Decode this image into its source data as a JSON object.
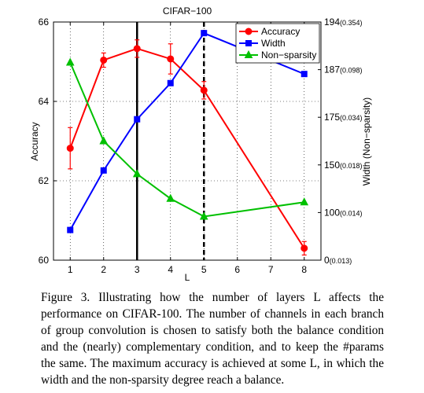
{
  "chart_data": {
    "type": "line",
    "title": "CIFAR−100",
    "xlabel": "L",
    "ylabel_left": "Accuracy",
    "ylabel_right": "Width (Non−sparsity)",
    "x_ticks": [
      "1",
      "2",
      "3",
      "4",
      "5",
      "6",
      "7",
      "8"
    ],
    "xlim": [
      0.5,
      8.5
    ],
    "ylim_left": [
      60,
      66
    ],
    "y_ticks_left": [
      "60",
      "62",
      "64",
      "66"
    ],
    "y_ticks_right": [
      {
        "value": 60,
        "width": "0",
        "nonsparsity": "(0.013)"
      },
      {
        "value": 61.2,
        "width": "100",
        "nonsparsity": "(0.014)"
      },
      {
        "value": 62.4,
        "width": "150",
        "nonsparsity": "(0.018)"
      },
      {
        "value": 63.6,
        "width": "175",
        "nonsparsity": "(0.034)"
      },
      {
        "value": 64.8,
        "width": "187",
        "nonsparsity": "(0.098)"
      },
      {
        "value": 66,
        "width": "194",
        "nonsparsity": "(0.354)"
      }
    ],
    "vertical_lines": [
      {
        "x": 3,
        "style": "solid"
      },
      {
        "x": 5,
        "style": "dashed"
      }
    ],
    "legend_position": "top-right",
    "series": [
      {
        "name": "Accuracy",
        "color": "#ff0000",
        "marker": "circle",
        "x": [
          1,
          2,
          3,
          4,
          5,
          8
        ],
        "y": [
          62.82,
          65.04,
          65.33,
          65.07,
          64.28,
          60.3
        ],
        "err": [
          0.52,
          0.18,
          0.22,
          0.38,
          0.22,
          0.17
        ]
      },
      {
        "name": "Width",
        "color": "#0000ff",
        "marker": "square",
        "x": [
          1,
          2,
          3,
          4,
          5,
          8
        ],
        "y": [
          60.76,
          62.26,
          63.55,
          64.46,
          65.72,
          64.69
        ]
      },
      {
        "name": "Non−sparsity",
        "color": "#00c000",
        "marker": "triangle",
        "x": [
          1,
          2,
          3,
          4,
          5,
          8
        ],
        "y": [
          64.98,
          63.0,
          62.17,
          61.55,
          61.1,
          61.46
        ]
      }
    ]
  },
  "caption": "Figure 3. Illustrating how the number of layers L affects the performance on CIFAR-100. The number of channels in each branch of group convolution is chosen to satisfy both the balance condition and the (nearly) complementary condition, and to keep the #params the same. The maximum accuracy is achieved at some L, in which the width and the non-sparsity degree reach a balance."
}
